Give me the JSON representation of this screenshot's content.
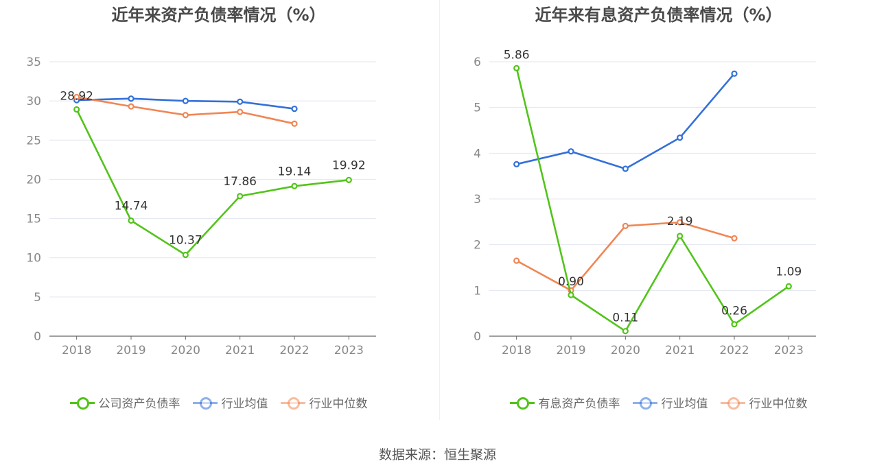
{
  "footer": "数据来源：恒生聚源",
  "chart_data": [
    {
      "type": "line",
      "title": "近年来资产负债率情况（%）",
      "x": [
        "2018",
        "2019",
        "2020",
        "2021",
        "2022",
        "2023"
      ],
      "ylim": [
        0,
        35
      ],
      "yticks": [
        "0",
        "5",
        "10",
        "15",
        "20",
        "25",
        "30",
        "35"
      ],
      "grid": true,
      "legend_position": "bottom",
      "series": [
        {
          "name": "公司资产负债率",
          "color": "#52c41a",
          "values": [
            28.92,
            14.74,
            10.37,
            17.86,
            19.14,
            19.92
          ],
          "labels": [
            "28.92",
            "14.74",
            "10.37",
            "17.86",
            "19.14",
            "19.92"
          ]
        },
        {
          "name": "行业均值",
          "color": "#3370d9",
          "values": [
            30.1,
            30.3,
            30.0,
            29.9,
            29.0,
            null
          ],
          "labels": []
        },
        {
          "name": "行业中位数",
          "color": "#f08654",
          "values": [
            30.5,
            29.3,
            28.2,
            28.6,
            27.1,
            null
          ],
          "labels": []
        }
      ]
    },
    {
      "type": "line",
      "title": "近年来有息资产负债率情况（%）",
      "x": [
        "2018",
        "2019",
        "2020",
        "2021",
        "2022",
        "2023"
      ],
      "ylim": [
        0,
        6
      ],
      "yticks": [
        "0",
        "1",
        "2",
        "3",
        "4",
        "5",
        "6"
      ],
      "grid": true,
      "legend_position": "bottom",
      "series": [
        {
          "name": "有息资产负债率",
          "color": "#52c41a",
          "values": [
            5.86,
            0.9,
            0.11,
            2.19,
            0.26,
            1.09
          ],
          "labels": [
            "5.86",
            "0.90",
            "0.11",
            "2.19",
            "0.26",
            "1.09"
          ]
        },
        {
          "name": "行业均值",
          "color": "#3370d9",
          "values": [
            3.76,
            4.04,
            3.66,
            4.34,
            5.74,
            null
          ],
          "labels": []
        },
        {
          "name": "行业中位数",
          "color": "#f08654",
          "values": [
            1.65,
            1.0,
            2.41,
            2.49,
            2.14,
            null
          ],
          "labels": []
        }
      ]
    }
  ]
}
